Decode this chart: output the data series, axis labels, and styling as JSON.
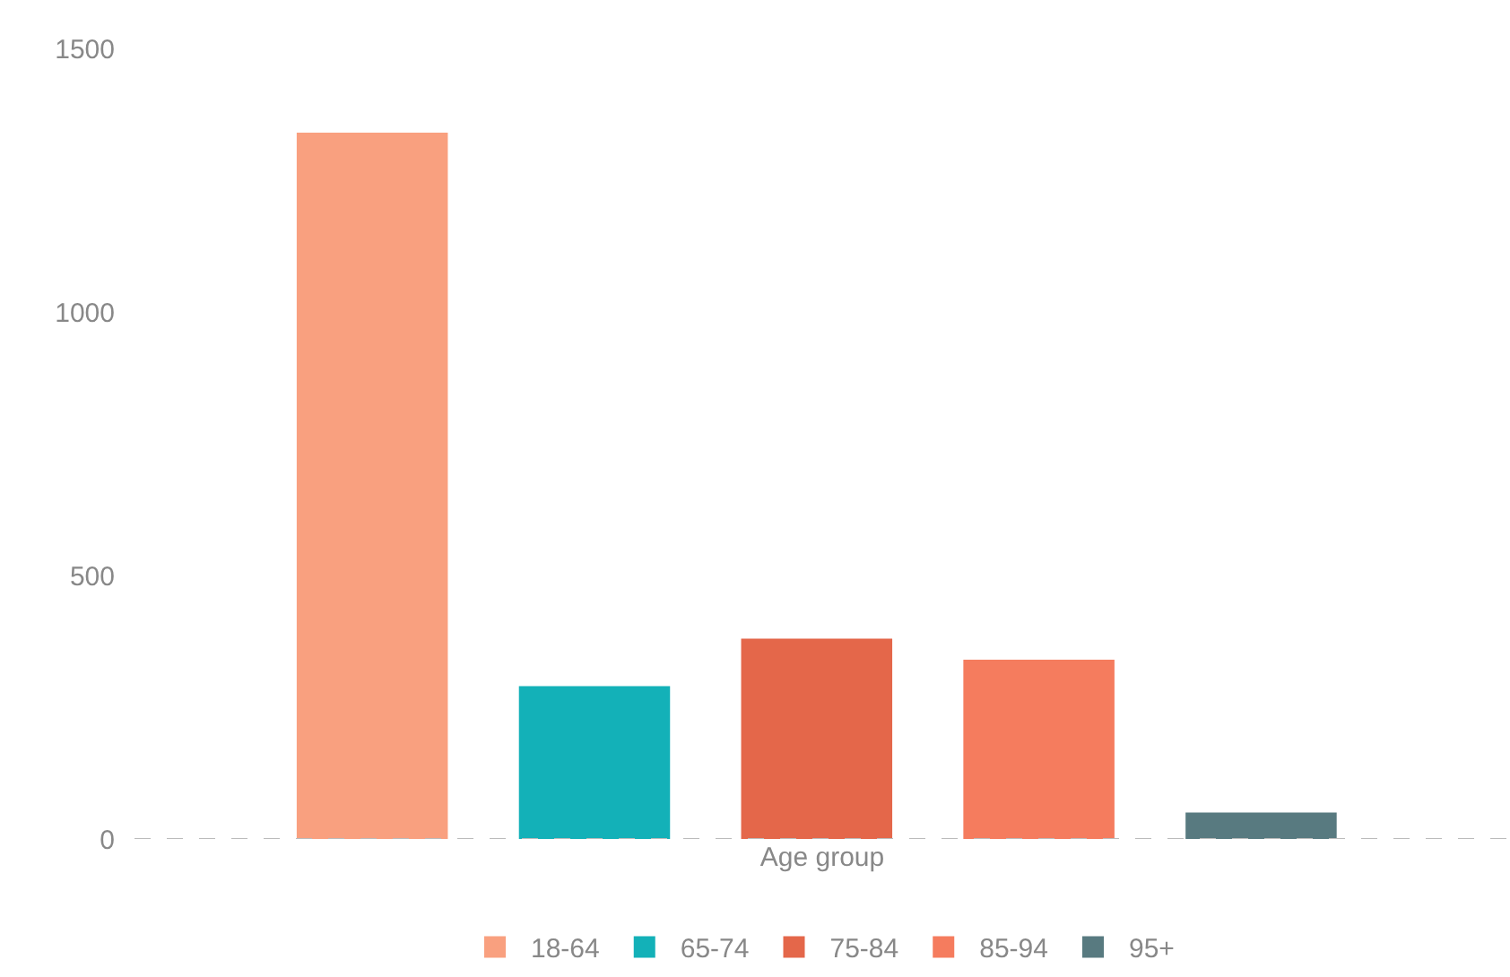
{
  "chart_data": {
    "type": "bar",
    "xlabel": "Age group",
    "categories": [
      null,
      null,
      null,
      null,
      null
    ],
    "series": [
      {
        "name": "18-64",
        "color": "#f9a07f",
        "values": [
          1340,
          null,
          null,
          null,
          null
        ]
      },
      {
        "name": "65-74",
        "color": "#13b1b8",
        "values": [
          null,
          290,
          null,
          null,
          null
        ]
      },
      {
        "name": "75-84",
        "color": "#e4674a",
        "values": [
          null,
          null,
          380,
          null,
          null
        ]
      },
      {
        "name": "85-94",
        "color": "#f57c5e",
        "values": [
          null,
          null,
          null,
          340,
          null
        ]
      },
      {
        "name": "95+",
        "color": "#587a80",
        "values": [
          null,
          null,
          null,
          null,
          50
        ]
      }
    ],
    "ylim": [
      0,
      1500
    ],
    "yticks": [
      0,
      500,
      1000,
      1500
    ],
    "legend": "bottom",
    "tick_labels": "y",
    "ref_lines": [
      {
        "axis": "y",
        "value": 0,
        "color": "#bbbbbb",
        "line_style": "dashed"
      }
    ]
  }
}
